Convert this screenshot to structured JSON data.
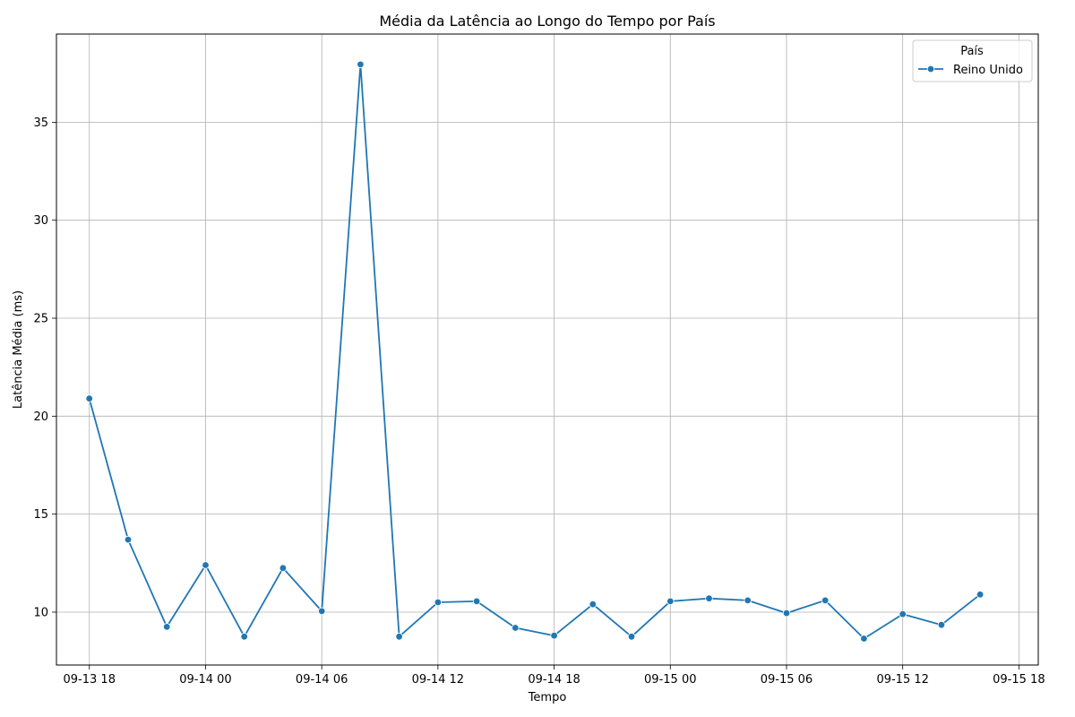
{
  "chart_data": {
    "type": "line",
    "title": "Média da Latência ao Longo do Tempo por País",
    "xlabel": "Tempo",
    "ylabel": "Latência Média (ms)",
    "x_tick_labels": [
      "09-13 18",
      "09-14 00",
      "09-14 06",
      "09-14 12",
      "09-14 18",
      "09-15 00",
      "09-15 06",
      "09-15 12",
      "09-15 18"
    ],
    "y_ticks": [
      10,
      15,
      20,
      25,
      30,
      35
    ],
    "ylim": [
      7.3,
      39.5
    ],
    "xlim": [
      "2024-09-13 16:18",
      "2024-09-15 19:00"
    ],
    "grid": true,
    "legend": {
      "title": "País",
      "placement": "top-right"
    },
    "series": [
      {
        "name": "Reino Unido",
        "color": "#1f77b4",
        "x": [
          "2024-09-13 18:00",
          "2024-09-13 20:00",
          "2024-09-13 22:00",
          "2024-09-14 00:00",
          "2024-09-14 02:00",
          "2024-09-14 04:00",
          "2024-09-14 06:00",
          "2024-09-14 08:00",
          "2024-09-14 10:00",
          "2024-09-14 12:00",
          "2024-09-14 14:00",
          "2024-09-14 16:00",
          "2024-09-14 18:00",
          "2024-09-14 20:00",
          "2024-09-14 22:00",
          "2024-09-15 00:00",
          "2024-09-15 02:00",
          "2024-09-15 04:00",
          "2024-09-15 06:00",
          "2024-09-15 08:00",
          "2024-09-15 10:00",
          "2024-09-15 12:00",
          "2024-09-15 14:00",
          "2024-09-15 16:00"
        ],
        "values": [
          20.9,
          13.7,
          9.25,
          12.4,
          8.75,
          12.25,
          10.05,
          37.95,
          8.75,
          10.5,
          10.55,
          9.2,
          8.8,
          10.4,
          8.75,
          10.55,
          10.7,
          10.6,
          9.95,
          10.6,
          8.65,
          9.9,
          9.35,
          10.9
        ]
      }
    ]
  }
}
